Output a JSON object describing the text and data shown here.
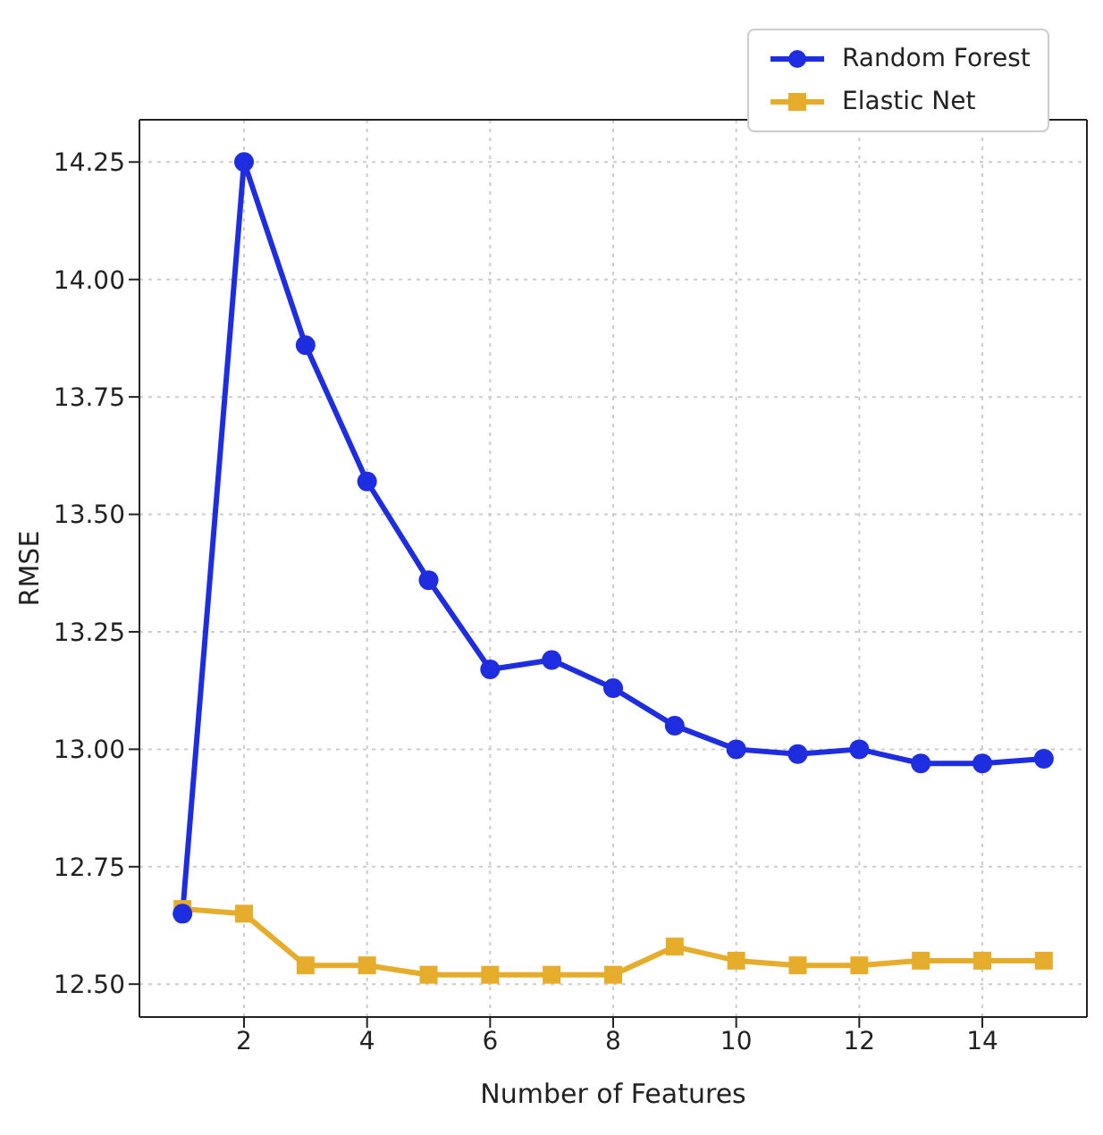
{
  "chart_data": {
    "type": "line",
    "xlabel": "Number of Features",
    "ylabel": "RMSE",
    "x": [
      1,
      2,
      3,
      4,
      5,
      6,
      7,
      8,
      9,
      10,
      11,
      12,
      13,
      14,
      15
    ],
    "series": [
      {
        "name": "Random Forest",
        "color": "#1f2de0",
        "marker": "circle",
        "values": [
          12.65,
          14.25,
          13.86,
          13.57,
          13.36,
          13.17,
          13.19,
          13.13,
          13.05,
          13.0,
          12.99,
          13.0,
          12.97,
          12.97,
          12.98
        ]
      },
      {
        "name": "Elastic Net",
        "color": "#e6ad2c",
        "marker": "square",
        "values": [
          12.66,
          12.65,
          12.54,
          12.54,
          12.52,
          12.52,
          12.52,
          12.52,
          12.58,
          12.55,
          12.54,
          12.54,
          12.55,
          12.55,
          12.55
        ]
      }
    ],
    "xlim": [
      0.3,
      15.7
    ],
    "xticks": [
      2,
      4,
      6,
      8,
      10,
      12,
      14
    ],
    "ylim": [
      12.43,
      14.34
    ],
    "yticks": [
      {
        "value": 12.5,
        "label": "12.50"
      },
      {
        "value": 12.75,
        "label": "12.75"
      },
      {
        "value": 13.0,
        "label": "13.00"
      },
      {
        "value": 13.25,
        "label": "13.25"
      },
      {
        "value": 13.5,
        "label": "13.50"
      },
      {
        "value": 13.75,
        "label": "13.75"
      },
      {
        "value": 14.0,
        "label": "14.00"
      },
      {
        "value": 14.25,
        "label": "14.25"
      }
    ],
    "grid": true,
    "legend": "top right",
    "line_style": "solid"
  }
}
